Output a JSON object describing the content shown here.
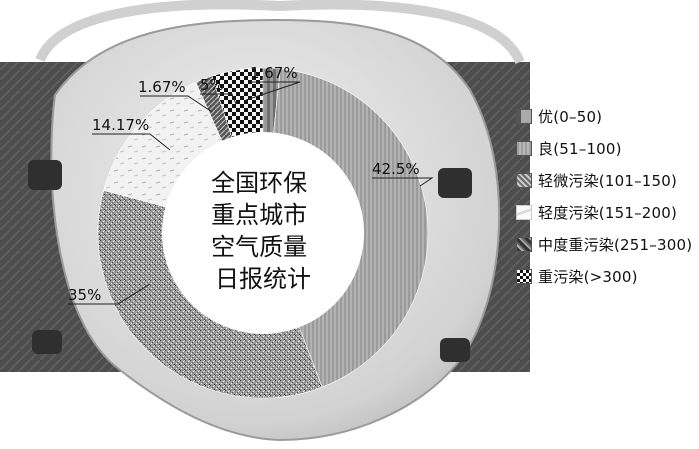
{
  "chart_data": {
    "type": "pie",
    "title": "全国环保重点城市空气质量日报统计",
    "title_lines": [
      "全国环保",
      "重点城市",
      "空气质量",
      "日报统计"
    ],
    "categories": [
      "优(0–50)",
      "良(51–100)",
      "轻微污染(101–150)",
      "轻度污染(151–200)",
      "中度重污染(251–300)",
      "重污染(>300)"
    ],
    "values": [
      1.67,
      42.5,
      35,
      14.17,
      1.67,
      5
    ],
    "value_labels": [
      "1.67%",
      "42.5%",
      "35%",
      "14.17%",
      "1.67%",
      "5%"
    ],
    "legend_position": "right",
    "slice_order_clockwise_from_top": [
      "优(0–50)",
      "良(51–100)",
      "轻微污染(101–150)",
      "轻度污染(151–200)",
      "中度重污染(251–300)",
      "重污染(>300)"
    ],
    "colors": [
      "#7f7f7f",
      "#a9a9a9",
      "#8e8e8e",
      "#ececec",
      "#5a5a5a",
      "#1a1a1a"
    ]
  }
}
